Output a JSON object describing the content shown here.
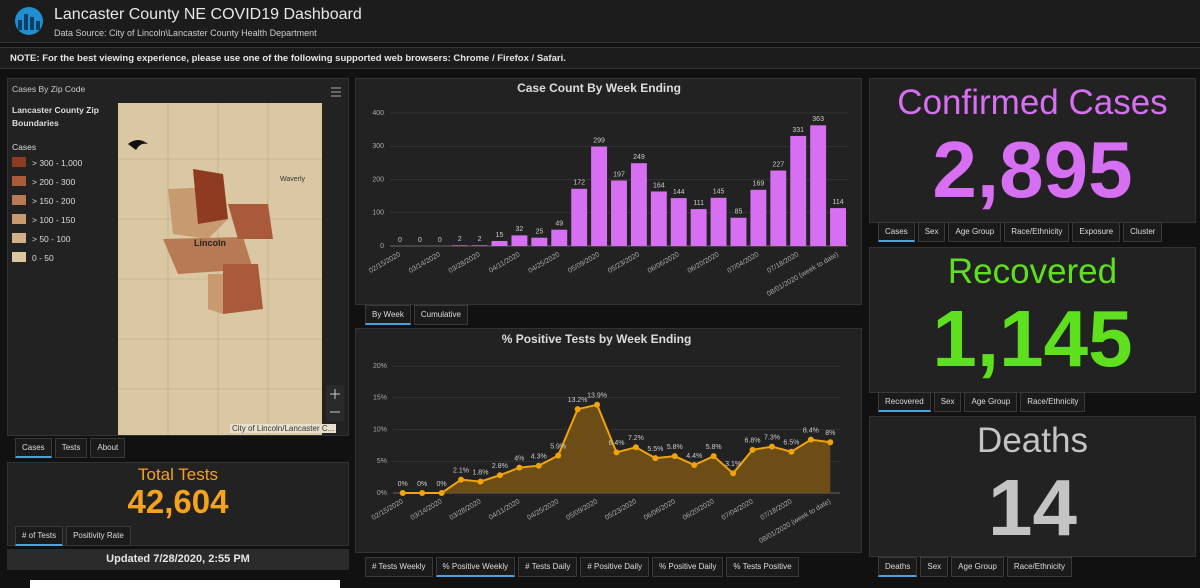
{
  "header": {
    "title": "Lancaster County NE COVID19 Dashboard",
    "source": "Data Source: City of Lincoln\\Lancaster County Health Department"
  },
  "note": "NOTE: For the best viewing experience, please use one of the following supported web browsers: Chrome / Firefox / Safari.",
  "map": {
    "title": "Cases By Zip Code",
    "layer": "Lancaster County Zip Boundaries",
    "legend_title": "Cases",
    "legend": [
      {
        "label": "> 300 - 1,000",
        "color": "#8e3b22"
      },
      {
        "label": "> 200 - 300",
        "color": "#a85a3a"
      },
      {
        "label": "> 150 - 200",
        "color": "#b87a55"
      },
      {
        "label": "> 100 - 150",
        "color": "#c89a70"
      },
      {
        "label": "> 50 - 100",
        "color": "#d2b088"
      },
      {
        "label": "0 - 50",
        "color": "#dcc7a0"
      }
    ],
    "places": [
      "Lincoln",
      "Waverly"
    ],
    "attribution": "City of Lincoln/Lancaster C...",
    "tabs": [
      "Cases",
      "Tests",
      "About"
    ]
  },
  "tests": {
    "title": "Total Tests",
    "value": "42,604",
    "tabs": [
      "# of Tests",
      "Positivity Rate"
    ]
  },
  "updated": "Updated 7/28/2020, 2:55 PM",
  "chart_data": [
    {
      "type": "bar",
      "title": "Case Count By Week Ending",
      "categories": [
        "02/15/2020",
        null,
        "03/14/2020",
        null,
        "03/28/2020",
        null,
        "04/11/2020",
        null,
        "04/25/2020",
        null,
        "05/09/2020",
        null,
        "05/23/2020",
        null,
        "06/06/2020",
        null,
        "06/20/2020",
        null,
        "07/04/2020",
        null,
        "07/18/2020",
        null,
        "08/01/2020 (week to date)"
      ],
      "values": [
        0,
        0,
        0,
        2,
        2,
        15,
        32,
        25,
        49,
        172,
        299,
        197,
        249,
        164,
        144,
        111,
        145,
        85,
        169,
        227,
        331,
        363,
        114
      ],
      "color": "#d66ff2",
      "ylim": [
        0,
        400
      ],
      "yticks": [
        0,
        100,
        200,
        300,
        400
      ],
      "grid": true
    },
    {
      "type": "line",
      "title": "% Positive Tests by Week Ending",
      "categories": [
        "02/15/2020",
        null,
        "03/14/2020",
        null,
        "03/28/2020",
        null,
        "04/11/2020",
        null,
        "04/25/2020",
        null,
        "05/09/2020",
        null,
        "05/23/2020",
        null,
        "06/06/2020",
        null,
        "06/20/2020",
        null,
        "07/04/2020",
        null,
        "07/18/2020",
        null,
        "08/01/2020 (week to date)"
      ],
      "values": [
        0,
        0,
        0,
        2.1,
        1.8,
        2.8,
        4,
        4.3,
        5.9,
        13.2,
        13.9,
        6.4,
        7.2,
        5.5,
        5.8,
        4.4,
        5.8,
        3.1,
        6.8,
        7.3,
        6.5,
        8.4,
        8
      ],
      "value_labels": [
        "0%",
        "0%",
        "0%",
        "2.1%",
        "1.8%",
        "2.8%",
        "4%",
        "4.3%",
        "5.9%",
        "13.2%",
        "13.9%",
        "6.4%",
        "7.2%",
        "5.5%",
        "5.8%",
        "4.4%",
        "5.8%",
        "3.1%",
        "6.8%",
        "7.3%",
        "6.5%",
        "8.4%",
        "8%"
      ],
      "color": "#f0a30a",
      "area_color": "#7a5514",
      "ylim": [
        0,
        20
      ],
      "yticks": [
        {
          "value": 0,
          "label": "0%"
        },
        {
          "value": 5,
          "label": "5%"
        },
        {
          "value": 10,
          "label": "10%"
        },
        {
          "value": 15,
          "label": "15%"
        },
        {
          "value": 20,
          "label": "20%"
        }
      ],
      "grid": true
    }
  ],
  "chart_tabs": [
    [
      "By Week",
      "Cumulative"
    ],
    [
      "# Tests Weekly",
      "% Positive Weekly",
      "# Tests Daily",
      "# Positive Daily",
      "% Positive Daily",
      "% Tests Positive"
    ]
  ],
  "indicators": [
    {
      "title": "Confirmed Cases",
      "value": "2,895",
      "color": "#d66ff2",
      "tabs": [
        "Cases",
        "Sex",
        "Age Group",
        "Race/Ethnicity",
        "Exposure",
        "Cluster"
      ]
    },
    {
      "title": "Recovered",
      "value": "1,145",
      "color": "#5fe01f",
      "tabs": [
        "Recovered",
        "Sex",
        "Age Group",
        "Race/Ethnicity"
      ]
    },
    {
      "title": "Deaths",
      "value": "14",
      "color": "#c4c4c4",
      "tabs": [
        "Deaths",
        "Sex",
        "Age Group",
        "Race/Ethnicity"
      ]
    }
  ]
}
